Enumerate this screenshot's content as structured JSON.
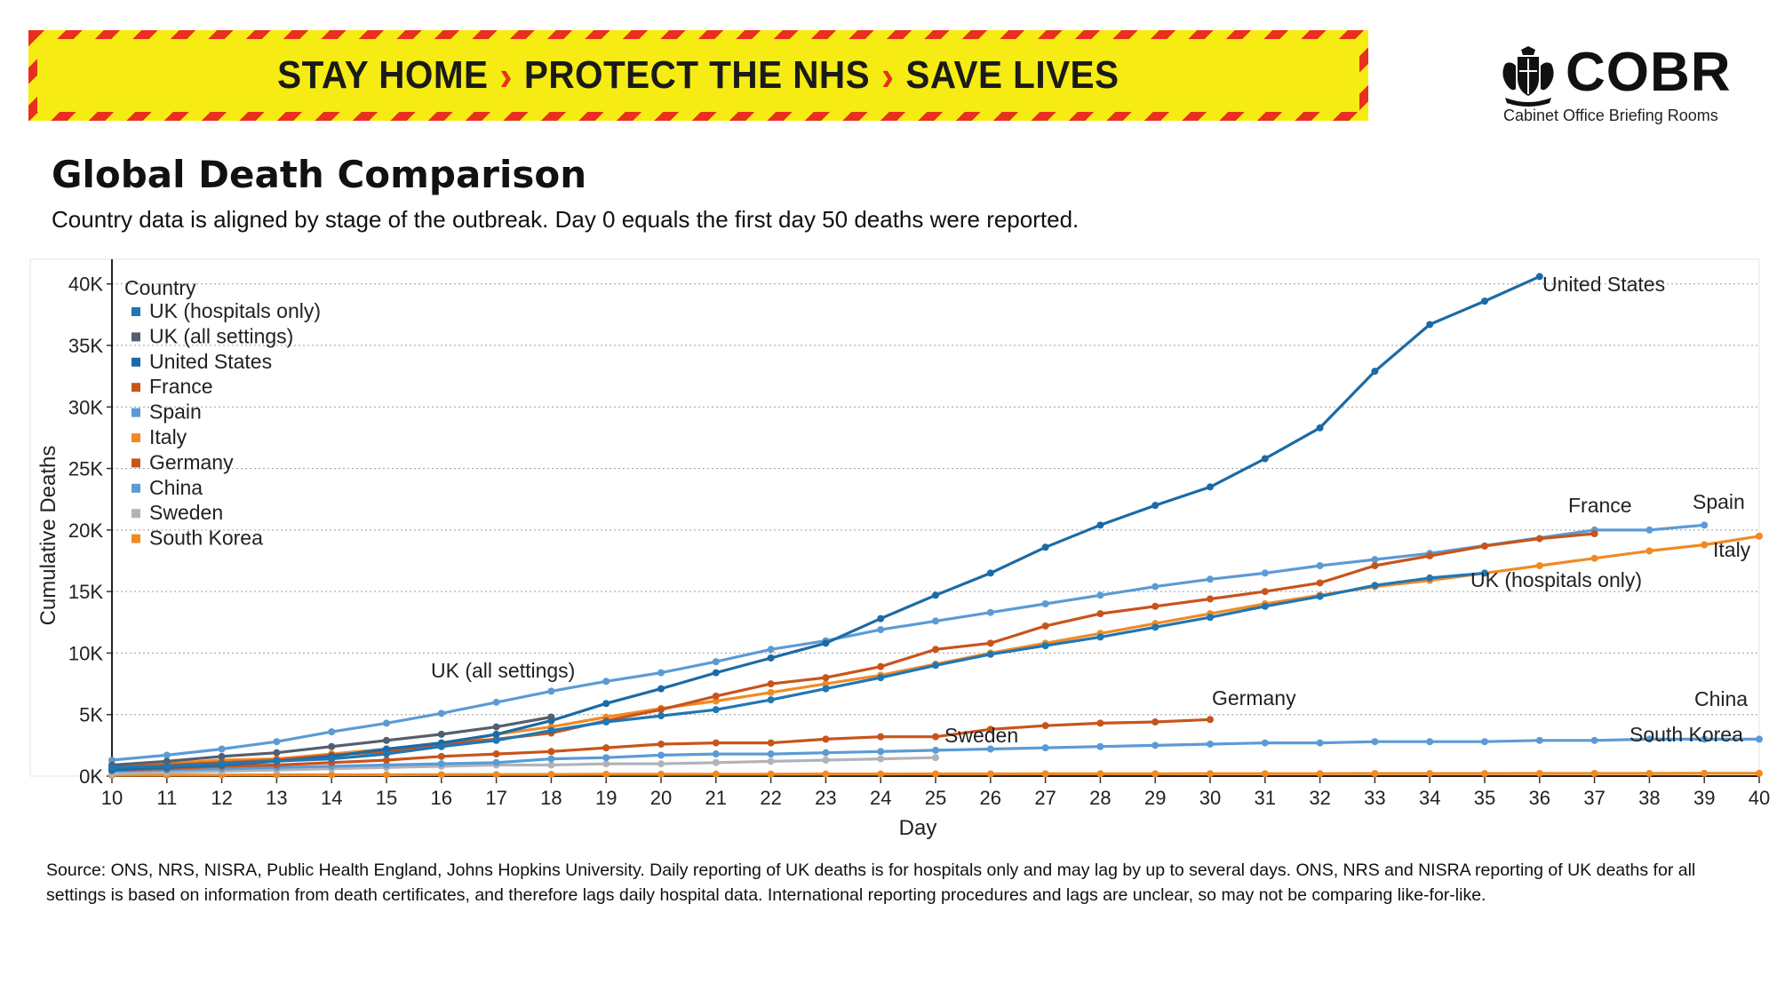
{
  "banner": {
    "parts": [
      "STAY HOME",
      "PROTECT THE NHS",
      "SAVE LIVES"
    ],
    "separator": "›"
  },
  "logo": {
    "name": "COBR",
    "subtitle": "Cabinet Office Briefing Rooms",
    "crest": "royal-coat-of-arms-icon"
  },
  "title": "Global Death Comparison",
  "subtitle": "Country data is aligned by stage of the outbreak. Day 0 equals the first day 50 deaths were reported.",
  "source": "Source: ONS, NRS, NISRA, Public Health England, Johns Hopkins University. Daily reporting of UK deaths is for hospitals only and may lag by up to several days. ONS, NRS and NISRA reporting of UK deaths for all settings is based on information from death certificates, and therefore lags daily hospital data. International reporting procedures and lags are unclear, so may not be comparing like-for-like.",
  "colors": {
    "banner_yellow": "#f6ec13",
    "banner_red": "#e8301c",
    "grid": "#9a9a9a"
  },
  "chart_data": {
    "type": "line",
    "xlabel": "Day",
    "ylabel": "Cumulative Deaths",
    "legend_title": "Country",
    "legend_position": "top-left",
    "grid": true,
    "xlim": [
      10,
      40
    ],
    "ylim": [
      0,
      42000
    ],
    "x_ticks": [
      10,
      11,
      12,
      13,
      14,
      15,
      16,
      17,
      18,
      19,
      20,
      21,
      22,
      23,
      24,
      25,
      26,
      27,
      28,
      29,
      30,
      31,
      32,
      33,
      34,
      35,
      36,
      37,
      38,
      39,
      40
    ],
    "y_ticks": [
      0,
      5000,
      10000,
      15000,
      20000,
      25000,
      30000,
      35000,
      40000
    ],
    "y_tick_labels": [
      "0K",
      "5K",
      "10K",
      "15K",
      "20K",
      "25K",
      "30K",
      "35K",
      "40K"
    ],
    "series": [
      {
        "name": "UK (hospitals only)",
        "color": "#1f77b4",
        "label": "UK (hospitals only)",
        "x": [
          10,
          11,
          12,
          13,
          14,
          15,
          16,
          17,
          18,
          19,
          20,
          21,
          22,
          23,
          24,
          25,
          26,
          27,
          28,
          29,
          30,
          31,
          32,
          33,
          34,
          35
        ],
        "y": [
          700,
          800,
          1000,
          1230,
          1400,
          1800,
          2400,
          2900,
          3700,
          4400,
          4900,
          5400,
          6200,
          7100,
          8000,
          9000,
          9900,
          10600,
          11300,
          12100,
          12900,
          13800,
          14600,
          15500,
          16100,
          16500
        ]
      },
      {
        "name": "UK (all settings)",
        "color": "#555e6c",
        "label": "UK (all settings)",
        "x": [
          10,
          11,
          12,
          13,
          14,
          15,
          16,
          17,
          18
        ],
        "y": [
          900,
          1200,
          1600,
          1900,
          2400,
          2900,
          3400,
          4000,
          4800
        ]
      },
      {
        "name": "United States",
        "color": "#1b6aa5",
        "label": "United States",
        "x": [
          10,
          11,
          12,
          13,
          14,
          15,
          16,
          17,
          18,
          19,
          20,
          21,
          22,
          23,
          24,
          25,
          26,
          27,
          28,
          29,
          30,
          31,
          32,
          33,
          34,
          35,
          36
        ],
        "y": [
          500,
          700,
          900,
          1200,
          1600,
          2200,
          2700,
          3400,
          4500,
          5900,
          7100,
          8400,
          9600,
          10800,
          12800,
          14700,
          16500,
          18600,
          20400,
          22000,
          23500,
          25800,
          28300,
          32900,
          36700,
          38600,
          40600
        ]
      },
      {
        "name": "France",
        "color": "#c8541b",
        "label": "France",
        "x": [
          10,
          11,
          12,
          13,
          14,
          15,
          16,
          17,
          18,
          19,
          20,
          21,
          22,
          23,
          24,
          25,
          26,
          27,
          28,
          29,
          30,
          31,
          32,
          33,
          34,
          35,
          36,
          37
        ],
        "y": [
          700,
          900,
          1100,
          1300,
          1700,
          2000,
          2600,
          3000,
          3500,
          4500,
          5400,
          6500,
          7500,
          8000,
          8900,
          10300,
          10800,
          12200,
          13200,
          13800,
          14400,
          15000,
          15700,
          17100,
          17900,
          18700,
          19300,
          19700
        ]
      },
      {
        "name": "Spain",
        "color": "#5b9bd5",
        "label": "Spain",
        "x": [
          10,
          11,
          12,
          13,
          14,
          15,
          16,
          17,
          18,
          19,
          20,
          21,
          22,
          23,
          24,
          25,
          26,
          27,
          28,
          29,
          30,
          31,
          32,
          33,
          34,
          37,
          38,
          39
        ],
        "y": [
          1300,
          1700,
          2200,
          2800,
          3600,
          4300,
          5100,
          6000,
          6900,
          7700,
          8400,
          9300,
          10300,
          11000,
          11900,
          12600,
          13300,
          14000,
          14700,
          15400,
          16000,
          16500,
          17100,
          17600,
          18100,
          20000,
          20000,
          20400
        ]
      },
      {
        "name": "Italy",
        "color": "#f08a24",
        "label": "Italy",
        "x": [
          10,
          11,
          12,
          13,
          14,
          15,
          16,
          17,
          18,
          19,
          20,
          21,
          22,
          23,
          24,
          25,
          26,
          27,
          28,
          29,
          30,
          31,
          32,
          33,
          34,
          35,
          36,
          37,
          38,
          39,
          40
        ],
        "y": [
          800,
          1000,
          1300,
          1400,
          1800,
          2200,
          2500,
          3400,
          4000,
          4800,
          5500,
          6100,
          6800,
          7500,
          8200,
          9100,
          10000,
          10800,
          11600,
          12400,
          13200,
          14000,
          14700,
          15400,
          15900,
          16500,
          17100,
          17700,
          18300,
          18800,
          19500
        ]
      },
      {
        "name": "Germany",
        "color": "#c8541b",
        "label": "Germany",
        "x": [
          10,
          11,
          12,
          13,
          14,
          15,
          16,
          17,
          18,
          19,
          20,
          21,
          22,
          23,
          24,
          25,
          26,
          27,
          28,
          29,
          30
        ],
        "y": [
          500,
          600,
          800,
          900,
          1100,
          1300,
          1600,
          1800,
          2000,
          2300,
          2600,
          2700,
          2700,
          3000,
          3200,
          3200,
          3800,
          4100,
          4300,
          4400,
          4600
        ]
      },
      {
        "name": "China",
        "color": "#5b9bd5",
        "label": "China",
        "x": [
          10,
          11,
          12,
          13,
          14,
          15,
          16,
          17,
          18,
          19,
          20,
          21,
          22,
          23,
          24,
          25,
          26,
          27,
          28,
          29,
          30,
          31,
          32,
          33,
          34,
          35,
          36,
          37,
          38,
          39,
          40
        ],
        "y": [
          400,
          500,
          600,
          700,
          800,
          900,
          1000,
          1100,
          1400,
          1500,
          1700,
          1800,
          1800,
          1900,
          2000,
          2100,
          2200,
          2300,
          2400,
          2500,
          2600,
          2700,
          2700,
          2800,
          2800,
          2800,
          2900,
          2900,
          3000,
          3000,
          3000
        ]
      },
      {
        "name": "Sweden",
        "color": "#b0b4ba",
        "label": "Sweden",
        "x": [
          10,
          11,
          12,
          13,
          14,
          15,
          16,
          17,
          18,
          19,
          20,
          21,
          22,
          23,
          24,
          25
        ],
        "y": [
          200,
          300,
          400,
          500,
          600,
          700,
          800,
          900,
          900,
          1000,
          1000,
          1100,
          1200,
          1300,
          1400,
          1500
        ]
      },
      {
        "name": "South Korea",
        "color": "#f08a24",
        "label": "South Korea",
        "x": [
          10,
          11,
          12,
          13,
          14,
          15,
          16,
          17,
          18,
          19,
          20,
          21,
          22,
          23,
          24,
          25,
          26,
          27,
          28,
          29,
          30,
          31,
          32,
          33,
          34,
          35,
          36,
          37,
          38,
          39,
          40
        ],
        "y": [
          70,
          80,
          90,
          100,
          100,
          110,
          120,
          130,
          140,
          150,
          150,
          160,
          160,
          170,
          170,
          180,
          180,
          190,
          190,
          190,
          200,
          200,
          200,
          210,
          210,
          210,
          220,
          220,
          220,
          230,
          230
        ]
      }
    ]
  }
}
